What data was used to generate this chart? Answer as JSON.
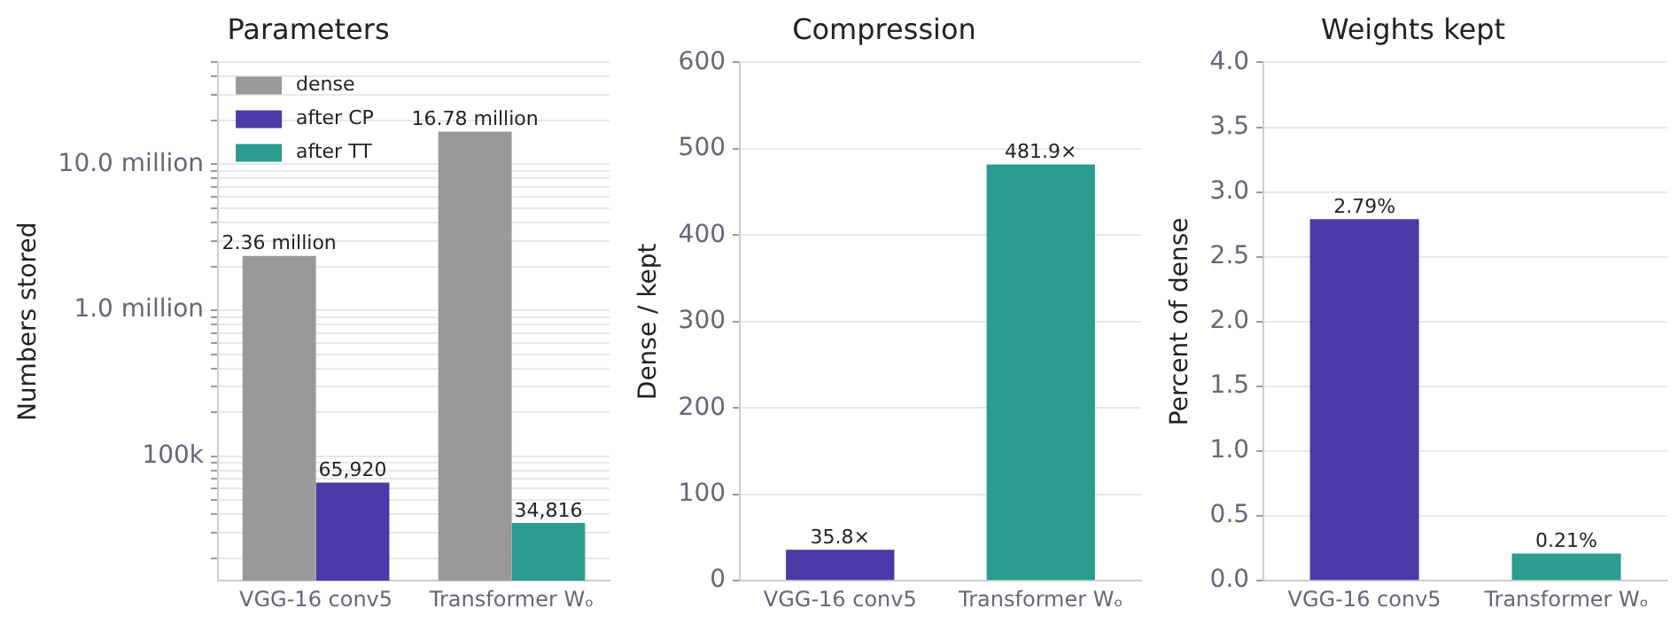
{
  "chart_data": [
    {
      "type": "bar",
      "title": "Parameters",
      "ylabel": "Numbers stored",
      "categories": [
        "VGG-16 conv5",
        "Transformer Wₒ"
      ],
      "log": "y",
      "ylim": [
        14000,
        50000000
      ],
      "yticks": [
        {
          "value": 20000,
          "label": null
        },
        {
          "value": 30000,
          "label": null
        },
        {
          "value": 40000,
          "label": null
        },
        {
          "value": 50000,
          "label": null
        },
        {
          "value": 60000,
          "label": null
        },
        {
          "value": 70000,
          "label": null
        },
        {
          "value": 80000,
          "label": null
        },
        {
          "value": 90000,
          "label": null
        },
        {
          "value": 100000,
          "label": "100k"
        },
        {
          "value": 200000,
          "label": null
        },
        {
          "value": 300000,
          "label": null
        },
        {
          "value": 400000,
          "label": null
        },
        {
          "value": 500000,
          "label": null
        },
        {
          "value": 600000,
          "label": null
        },
        {
          "value": 700000,
          "label": null
        },
        {
          "value": 800000,
          "label": null
        },
        {
          "value": 900000,
          "label": null
        },
        {
          "value": 1000000,
          "label": "1.0 million"
        },
        {
          "value": 2000000,
          "label": null
        },
        {
          "value": 3000000,
          "label": null
        },
        {
          "value": 4000000,
          "label": null
        },
        {
          "value": 5000000,
          "label": null
        },
        {
          "value": 6000000,
          "label": null
        },
        {
          "value": 7000000,
          "label": null
        },
        {
          "value": 8000000,
          "label": null
        },
        {
          "value": 9000000,
          "label": null
        },
        {
          "value": 10000000,
          "label": "10.0 million"
        },
        {
          "value": 20000000,
          "label": null
        },
        {
          "value": 30000000,
          "label": null
        },
        {
          "value": 40000000,
          "label": null
        },
        {
          "value": 50000000,
          "label": null
        }
      ],
      "grid": "y",
      "legend": "top left",
      "series": [
        {
          "name": "dense",
          "color": "#999999",
          "values": [
            2360000,
            16780000
          ],
          "value_labels": [
            "2.36 million",
            "16.78 million"
          ]
        },
        {
          "name": "after CP",
          "color": "#4a3aa7",
          "values": [
            65920,
            null
          ],
          "value_labels": [
            "65,920",
            null
          ]
        },
        {
          "name": "after TT",
          "color": "#2a9d8f",
          "values": [
            null,
            34816
          ],
          "value_labels": [
            null,
            "34,816"
          ]
        }
      ]
    },
    {
      "type": "bar",
      "title": "Compression",
      "ylabel": "Dense / kept",
      "categories": [
        "VGG-16 conv5",
        "Transformer Wₒ"
      ],
      "ylim": [
        0,
        600
      ],
      "yticks": [
        0,
        100,
        200,
        300,
        400,
        500,
        600
      ],
      "grid": "y",
      "series": [
        {
          "colors": [
            "#4a3aa7",
            "#2a9d8f"
          ],
          "values": [
            35.8,
            481.9
          ],
          "value_labels": [
            "35.8×",
            "481.9×"
          ]
        }
      ]
    },
    {
      "type": "bar",
      "title": "Weights kept",
      "ylabel": "Percent of dense",
      "categories": [
        "VGG-16 conv5",
        "Transformer Wₒ"
      ],
      "ylim": [
        0,
        4
      ],
      "yticks": [
        {
          "value": 0,
          "label": "0.0"
        },
        {
          "value": 0.5,
          "label": "0.5"
        },
        {
          "value": 1,
          "label": "1.0"
        },
        {
          "value": 1.5,
          "label": "1.5"
        },
        {
          "value": 2,
          "label": "2.0"
        },
        {
          "value": 2.5,
          "label": "2.5"
        },
        {
          "value": 3,
          "label": "3.0"
        },
        {
          "value": 3.5,
          "label": "3.5"
        },
        {
          "value": 4,
          "label": "4.0"
        }
      ],
      "grid": "y",
      "series": [
        {
          "colors": [
            "#4a3aa7",
            "#2a9d8f"
          ],
          "values": [
            2.79,
            0.21
          ],
          "value_labels": [
            "2.79%",
            "0.21%"
          ]
        }
      ]
    }
  ]
}
